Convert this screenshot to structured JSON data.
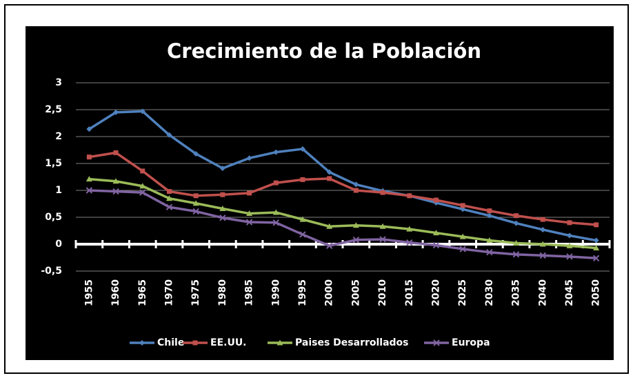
{
  "chart_data": {
    "type": "line",
    "title": "Crecimiento de la Población",
    "categories": [
      "1955",
      "1960",
      "1965",
      "1970",
      "1975",
      "1980",
      "1985",
      "1990",
      "1995",
      "2000",
      "2005",
      "2010",
      "2015",
      "2020",
      "2025",
      "2030",
      "2035",
      "2040",
      "2045",
      "2050"
    ],
    "series": [
      {
        "name": "Chile",
        "color": "#4f81bd",
        "values": [
          2.14,
          2.45,
          2.47,
          2.03,
          1.68,
          1.41,
          1.6,
          1.71,
          1.77,
          1.34,
          1.11,
          0.99,
          0.9,
          0.77,
          0.65,
          0.53,
          0.39,
          0.27,
          0.16,
          0.07
        ]
      },
      {
        "name": "EE.UU.",
        "color": "#c0504d",
        "values": [
          1.62,
          1.7,
          1.36,
          0.98,
          0.9,
          0.92,
          0.95,
          1.14,
          1.2,
          1.22,
          1.0,
          0.96,
          0.9,
          0.82,
          0.72,
          0.62,
          0.53,
          0.46,
          0.4,
          0.36
        ]
      },
      {
        "name": "Paises Desarrollados",
        "color": "#9bbb59",
        "values": [
          1.21,
          1.17,
          1.08,
          0.85,
          0.76,
          0.66,
          0.57,
          0.59,
          0.46,
          0.33,
          0.35,
          0.33,
          0.28,
          0.21,
          0.14,
          0.07,
          0.02,
          0.0,
          -0.03,
          -0.07
        ]
      },
      {
        "name": "Europa",
        "color": "#8064a2",
        "values": [
          1.0,
          0.98,
          0.96,
          0.69,
          0.61,
          0.49,
          0.41,
          0.4,
          0.18,
          -0.03,
          0.08,
          0.09,
          0.03,
          -0.02,
          -0.09,
          -0.15,
          -0.19,
          -0.21,
          -0.23,
          -0.26
        ]
      }
    ],
    "ylim": [
      -0.5,
      3
    ],
    "yticks": [
      {
        "value": -0.5,
        "label": "-0,5"
      },
      0,
      {
        "value": 0.5,
        "label": "0,5"
      },
      1,
      {
        "value": 1.5,
        "label": "1,5"
      },
      2,
      {
        "value": 2.5,
        "label": "2,5"
      },
      3
    ],
    "grid": true,
    "legend": "bottom"
  }
}
